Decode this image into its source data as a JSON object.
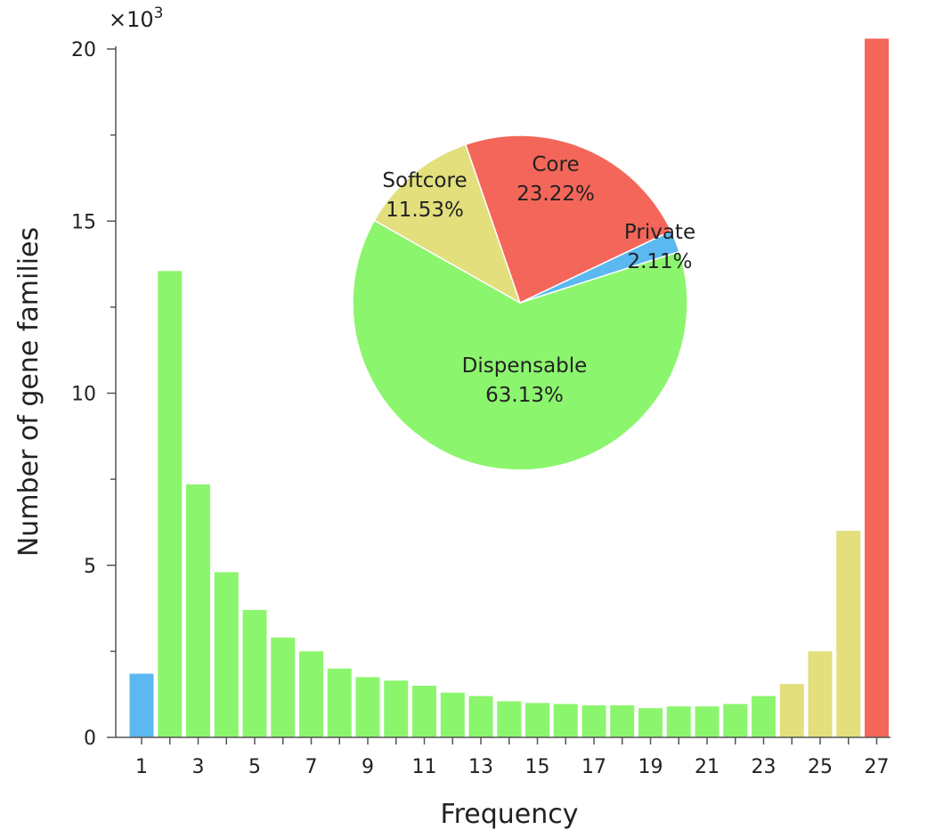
{
  "chart_data": [
    {
      "type": "bar",
      "xlabel": "Frequency",
      "ylabel": "Number of gene families",
      "y_multiplier": "×10",
      "y_multiplier_exp": "3",
      "ylim": [
        0,
        20
      ],
      "yticks": [
        0,
        5,
        10,
        15,
        20
      ],
      "x": [
        1,
        2,
        3,
        4,
        5,
        6,
        7,
        8,
        9,
        10,
        11,
        12,
        13,
        14,
        15,
        16,
        17,
        18,
        19,
        20,
        21,
        22,
        23,
        24,
        25,
        26,
        27
      ],
      "xtick_labels": [
        "1",
        "3",
        "5",
        "7",
        "9",
        "11",
        "13",
        "15",
        "17",
        "19",
        "21",
        "23",
        "25",
        "27"
      ],
      "values": [
        1.85,
        13.55,
        7.35,
        4.8,
        3.7,
        2.9,
        2.5,
        2.0,
        1.75,
        1.65,
        1.5,
        1.3,
        1.2,
        1.05,
        1.0,
        0.97,
        0.93,
        0.93,
        0.85,
        0.9,
        0.9,
        0.97,
        1.2,
        1.55,
        2.5,
        6.0,
        20.3
      ],
      "bar_groups": [
        "Private",
        "Dispensable",
        "Dispensable",
        "Dispensable",
        "Dispensable",
        "Dispensable",
        "Dispensable",
        "Dispensable",
        "Dispensable",
        "Dispensable",
        "Dispensable",
        "Dispensable",
        "Dispensable",
        "Dispensable",
        "Dispensable",
        "Dispensable",
        "Dispensable",
        "Dispensable",
        "Dispensable",
        "Dispensable",
        "Dispensable",
        "Dispensable",
        "Dispensable",
        "Softcore",
        "Softcore",
        "Softcore",
        "Core"
      ],
      "grid": false
    },
    {
      "type": "pie",
      "slices": [
        {
          "name": "Core",
          "value": 23.22,
          "label": "23.22%",
          "color": "#f4665a"
        },
        {
          "name": "Private",
          "value": 2.11,
          "label": "2.11%",
          "color": "#5bb8f0"
        },
        {
          "name": "Dispensable",
          "value": 63.13,
          "label": "63.13%",
          "color": "#8cf56e"
        },
        {
          "name": "Softcore",
          "value": 11.53,
          "label": "11.53%",
          "color": "#e2df7c"
        }
      ]
    }
  ],
  "colors": {
    "Private": "#5bb8f0",
    "Dispensable": "#8cf56e",
    "Softcore": "#e2df7c",
    "Core": "#f4665a"
  }
}
